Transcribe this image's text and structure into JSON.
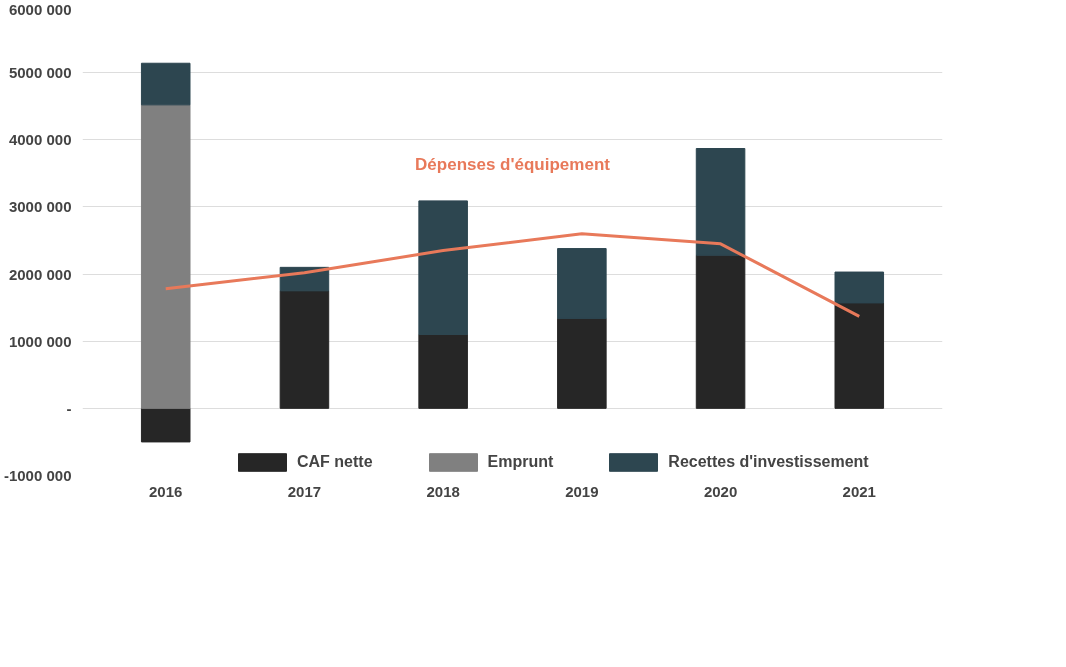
{
  "chart_data": {
    "type": "bar",
    "stacked": true,
    "categories": [
      "2016",
      "2017",
      "2018",
      "2019",
      "2020",
      "2021"
    ],
    "series": [
      {
        "name": "CAF nette",
        "color": "#262626",
        "values": [
          -500000,
          1750000,
          1100000,
          1340000,
          2280000,
          1570000
        ]
      },
      {
        "name": "Emprunt",
        "color": "#808080",
        "values": [
          4520000,
          null,
          null,
          null,
          null,
          null
        ]
      },
      {
        "name": "Recettes d'investissement",
        "color": "#2d4650",
        "values": [
          620000,
          350000,
          1990000,
          1040000,
          1590000,
          460000
        ]
      },
      {
        "name": "Dépenses d'équipement",
        "type": "line",
        "color": "#e8795a",
        "values": [
          1780000,
          2020000,
          2350000,
          2600000,
          2450000,
          1370000
        ]
      }
    ],
    "ylim": [
      -1000000,
      6000000
    ],
    "yticks": [
      {
        "value": -1000000,
        "label": "-1000 000"
      },
      {
        "value": 0,
        "label": "-"
      },
      {
        "value": 1000000,
        "label": "1000 000"
      },
      {
        "value": 2000000,
        "label": "2000 000"
      },
      {
        "value": 3000000,
        "label": "3000 000"
      },
      {
        "value": 4000000,
        "label": "4000 000"
      },
      {
        "value": 5000000,
        "label": "5000 000"
      },
      {
        "value": 6000000,
        "label": "6000 000"
      }
    ],
    "grid": "y",
    "legend": "bottom"
  }
}
